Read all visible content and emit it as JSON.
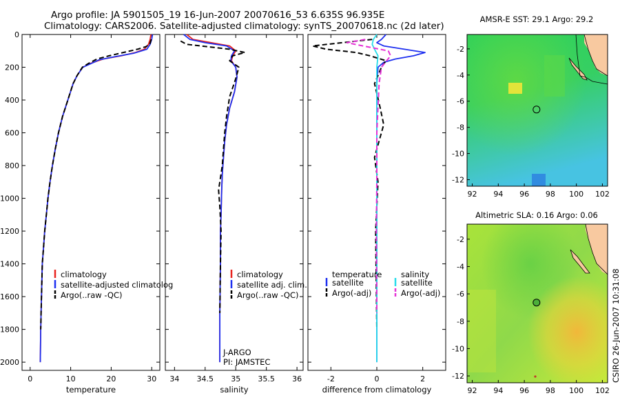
{
  "header": {
    "line1": "Argo profile: JA 5901505_19 16-Jun-2007 20070616_53 6.635S 96.935E",
    "line2": "Climatology: CARS2006. Satellite-adjusted climatology: synTS_20070618.nc (2d later)"
  },
  "credit": "CSIRO 26-Jun-2007 10:31:08",
  "colors": {
    "climatology": "#e8231e",
    "satellite": "#1d2ff0",
    "argo": "#000000",
    "salinity_satellite": "#26dcea",
    "salinity_argo": "#e531d6",
    "land": "#f8c9a0"
  },
  "chart_data": [
    {
      "type": "line",
      "id": "temperature",
      "xlabel": "temperature",
      "xlim": [
        -2,
        32
      ],
      "ylim": [
        0,
        2050
      ],
      "y_inverted": true,
      "xticks": [
        0,
        10,
        20,
        30
      ],
      "yticks": [
        0,
        200,
        400,
        600,
        800,
        1000,
        1200,
        1400,
        1600,
        1800,
        2000
      ],
      "legend": [
        "climatology",
        "satellite-adjusted climatolog",
        "Argo(..raw -QC)"
      ],
      "series": [
        {
          "name": "climatology",
          "color": "#e8231e",
          "dash": "solid",
          "x": [
            29.8,
            29.6,
            29.2,
            28.2,
            26.0,
            22.5,
            18.0,
            15.0,
            13.0,
            11.6,
            10.6,
            9.3,
            8.0,
            7.0,
            6.2,
            5.5,
            4.9,
            4.4,
            4.0,
            3.6,
            3.3,
            3.0,
            2.8,
            2.6,
            2.5
          ],
          "y": [
            0,
            30,
            60,
            90,
            110,
            130,
            150,
            175,
            200,
            250,
            300,
            400,
            500,
            600,
            700,
            800,
            900,
            1000,
            1100,
            1200,
            1300,
            1400,
            1600,
            1800,
            2000
          ]
        },
        {
          "name": "satellite-adjusted climatolog",
          "color": "#1d2ff0",
          "dash": "solid",
          "x": [
            30.2,
            30.0,
            29.6,
            28.8,
            25.5,
            21.0,
            17.0,
            14.8,
            13.0,
            11.6,
            10.6,
            9.3,
            8.0,
            7.0,
            6.2,
            5.5,
            4.9,
            4.4,
            4.0,
            3.6,
            3.3,
            3.0,
            2.8,
            2.6,
            2.5
          ],
          "y": [
            0,
            30,
            60,
            90,
            115,
            135,
            155,
            180,
            200,
            250,
            300,
            400,
            500,
            600,
            700,
            800,
            900,
            1000,
            1100,
            1200,
            1300,
            1400,
            1600,
            1800,
            2000
          ]
        },
        {
          "name": "Argo(..raw -QC)",
          "color": "#000000",
          "dash": "dashed",
          "x": [
            29.9,
            29.5,
            28.5,
            26.5,
            23.0,
            19.5,
            16.5,
            14.5,
            12.9,
            11.6,
            10.6,
            9.3,
            8.0,
            7.0,
            6.2,
            5.5,
            4.9,
            4.4,
            4.0,
            3.6,
            3.3,
            3.0,
            2.8,
            2.6
          ],
          "y": [
            30,
            60,
            75,
            90,
            110,
            130,
            150,
            175,
            200,
            250,
            300,
            400,
            500,
            600,
            700,
            800,
            900,
            1000,
            1100,
            1200,
            1300,
            1400,
            1600,
            1800
          ]
        }
      ]
    },
    {
      "type": "line",
      "id": "salinity",
      "xlabel": "salinity",
      "xlim": [
        33.85,
        36.1
      ],
      "ylim": [
        0,
        2050
      ],
      "y_inverted": true,
      "xticks": [
        34,
        34.5,
        35,
        35.5,
        36
      ],
      "legend": [
        "climatology",
        "satellite adj. clim.",
        "Argo(..raw -QC)"
      ],
      "annotations": [
        "J-ARGO",
        "PI: JAMSTEC"
      ],
      "series": [
        {
          "name": "climatology",
          "color": "#e8231e",
          "dash": "solid",
          "x": [
            34.2,
            34.3,
            34.6,
            34.9,
            35.0,
            34.95,
            34.93,
            35.0,
            35.02,
            34.98,
            34.9,
            34.85,
            34.82,
            34.8,
            34.78,
            34.77,
            34.76,
            34.75,
            34.75,
            34.74,
            34.74
          ],
          "y": [
            0,
            30,
            50,
            70,
            100,
            130,
            160,
            200,
            260,
            350,
            450,
            550,
            650,
            750,
            850,
            950,
            1100,
            1200,
            1400,
            1700,
            2000
          ]
        },
        {
          "name": "satellite adj. clim.",
          "color": "#1d2ff0",
          "dash": "solid",
          "x": [
            34.15,
            34.25,
            34.5,
            34.85,
            34.98,
            34.93,
            34.92,
            35.0,
            35.02,
            34.98,
            34.9,
            34.85,
            34.82,
            34.8,
            34.78,
            34.77,
            34.76,
            34.75,
            34.75,
            34.74,
            34.74
          ],
          "y": [
            0,
            30,
            50,
            70,
            100,
            130,
            160,
            200,
            260,
            350,
            450,
            550,
            650,
            750,
            850,
            950,
            1100,
            1200,
            1400,
            1700,
            2000
          ]
        },
        {
          "name": "Argo(..raw -QC)",
          "color": "#000000",
          "dash": "dashed",
          "x": [
            34.1,
            34.2,
            34.55,
            34.9,
            35.15,
            34.95,
            34.9,
            35.05,
            35.0,
            34.9,
            34.85,
            34.82,
            34.8,
            34.78,
            34.72,
            34.74,
            34.76,
            34.75,
            34.74
          ],
          "y": [
            40,
            60,
            75,
            90,
            110,
            130,
            160,
            200,
            270,
            380,
            500,
            600,
            700,
            800,
            950,
            1050,
            1200,
            1400,
            1700
          ]
        }
      ]
    },
    {
      "type": "line",
      "id": "difference",
      "xlabel": "difference from climatology",
      "xlim": [
        -3,
        3
      ],
      "ylim": [
        0,
        2050
      ],
      "y_inverted": true,
      "xticks": [
        -2,
        0,
        2
      ],
      "legend_titles": [
        "temperature",
        "salinity"
      ],
      "legend": [
        "satellite",
        "Argo(-adj)",
        "satellite",
        "Argo(-adj)"
      ],
      "series": [
        {
          "name": "temperature satellite",
          "color": "#1d2ff0",
          "dash": "solid",
          "x": [
            0.4,
            0.2,
            0.0,
            0.3,
            1.2,
            2.1,
            1.6,
            0.8,
            0.3,
            0.05,
            0.0,
            0.0,
            0.0,
            0.0,
            0.0
          ],
          "y": [
            0,
            30,
            50,
            70,
            90,
            110,
            130,
            150,
            170,
            200,
            300,
            500,
            800,
            1200,
            2000
          ]
        },
        {
          "name": "temperature Argo(-adj)",
          "color": "#000000",
          "dash": "dashed",
          "x": [
            -0.2,
            -2.8,
            -2.2,
            -0.9,
            -0.3,
            0.4,
            0.2,
            -0.1,
            0.15,
            0.3,
            0.1,
            -0.1,
            0.05,
            -0.05,
            0.0
          ],
          "y": [
            30,
            70,
            90,
            110,
            130,
            160,
            200,
            300,
            450,
            550,
            650,
            750,
            900,
            1200,
            1800
          ]
        },
        {
          "name": "salinity satellite",
          "color": "#26dcea",
          "dash": "solid",
          "x": [
            0.0,
            -0.15,
            -0.2,
            -0.1,
            0.05,
            0.0,
            0.0,
            0.0,
            0.0
          ],
          "y": [
            0,
            30,
            60,
            90,
            130,
            200,
            500,
            1000,
            2000
          ]
        },
        {
          "name": "salinity Argo(-adj)",
          "color": "#e531d6",
          "dash": "dashed",
          "x": [
            -0.5,
            -1.3,
            -0.6,
            0.5,
            0.6,
            0.2,
            0.1,
            0.0,
            0.0,
            -0.02,
            0.0
          ],
          "y": [
            30,
            50,
            70,
            100,
            130,
            200,
            300,
            600,
            900,
            1200,
            1700
          ]
        }
      ]
    },
    {
      "type": "heatmap",
      "id": "sst-map",
      "title": "AMSR-E SST: 29.1 Argo: 29.2",
      "xlim": [
        91.6,
        102.4
      ],
      "ylim": [
        -12.5,
        -0.9
      ],
      "xticks": [
        92,
        94,
        96,
        98,
        100,
        102
      ],
      "yticks": [
        -2,
        -4,
        -6,
        -8,
        -10,
        -12
      ],
      "argo_position": [
        96.935,
        -6.635
      ]
    },
    {
      "type": "heatmap",
      "id": "sla-map",
      "title": "Altimetric SLA: 0.16 Argo: 0.06",
      "xlim": [
        91.6,
        102.4
      ],
      "ylim": [
        -12.5,
        -0.9
      ],
      "xticks": [
        92,
        94,
        96,
        98,
        100,
        102
      ],
      "yticks": [
        -2,
        -4,
        -6,
        -8,
        -10,
        -12
      ],
      "argo_position": [
        96.935,
        -6.635
      ]
    }
  ]
}
